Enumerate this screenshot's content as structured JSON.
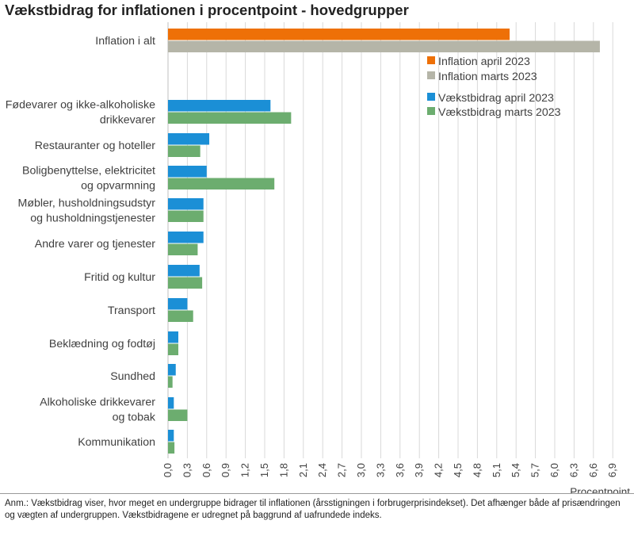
{
  "title": "Vækstbidrag for inflationen i procentpoint - hovedgrupper",
  "note": "Anm.: Vækstbidrag viser, hvor meget en undergruppe bidrager til inflationen (årsstigningen i forbrugerprisindekset). Det afhænger både af prisændringen og vægten af undergruppen. Vækstbidragene er udregnet på baggrund af uafrundede indeks.",
  "colors": {
    "inflation_april": "#ee7007",
    "inflation_marts": "#b5b5a8",
    "bidrag_april": "#1b8fd6",
    "bidrag_marts": "#6cad6f",
    "grid": "#d9d9d9",
    "text": "#404040"
  },
  "chart_data": {
    "type": "bar",
    "orientation": "horizontal",
    "xlabel": "Procentpoint",
    "xlim": [
      0,
      6.9
    ],
    "xticks": [
      "0,0",
      "0,3",
      "0,6",
      "0,9",
      "1,2",
      "1,5",
      "1,8",
      "2,1",
      "2,4",
      "2,7",
      "3,0",
      "3,3",
      "3,6",
      "3,9",
      "4,2",
      "4,5",
      "4,8",
      "5,1",
      "5,4",
      "5,7",
      "6,0",
      "6,3",
      "6,6",
      "6,9"
    ],
    "grid": true,
    "legend_position": "right",
    "legend": [
      {
        "name": "Inflation april 2023",
        "color_key": "inflation_april"
      },
      {
        "name": "Inflation marts 2023",
        "color_key": "inflation_marts"
      },
      {
        "name": "Vækstbidrag april 2023",
        "color_key": "bidrag_april"
      },
      {
        "name": "Vækstbidrag marts 2023",
        "color_key": "bidrag_marts"
      }
    ],
    "categories": [
      {
        "label": [
          "Inflation i alt"
        ],
        "april": 5.3,
        "marts": 6.7,
        "total": true
      },
      {
        "label": [
          "Fødevarer og ikke-alkoholiske",
          "drikkevarer"
        ],
        "april": 1.59,
        "marts": 1.91
      },
      {
        "label": [
          "Restauranter og hoteller"
        ],
        "april": 0.64,
        "marts": 0.5
      },
      {
        "label": [
          "Boligbenyttelse, elektricitet",
          "og opvarmning"
        ],
        "april": 0.6,
        "marts": 1.65
      },
      {
        "label": [
          "Møbler, husholdningsudstyr",
          "og husholdningstjenester"
        ],
        "april": 0.55,
        "marts": 0.55
      },
      {
        "label": [
          "Andre varer og tjenester"
        ],
        "april": 0.55,
        "marts": 0.46
      },
      {
        "label": [
          "Fritid og kultur"
        ],
        "april": 0.49,
        "marts": 0.53
      },
      {
        "label": [
          "Transport"
        ],
        "april": 0.3,
        "marts": 0.39
      },
      {
        "label": [
          "Beklædning og fodtøj"
        ],
        "april": 0.16,
        "marts": 0.16
      },
      {
        "label": [
          "Sundhed"
        ],
        "april": 0.12,
        "marts": 0.07
      },
      {
        "label": [
          "Alkoholiske drikkevarer",
          "og tobak"
        ],
        "april": 0.09,
        "marts": 0.3
      },
      {
        "label": [
          "Kommunikation"
        ],
        "april": 0.09,
        "marts": 0.1
      }
    ]
  }
}
